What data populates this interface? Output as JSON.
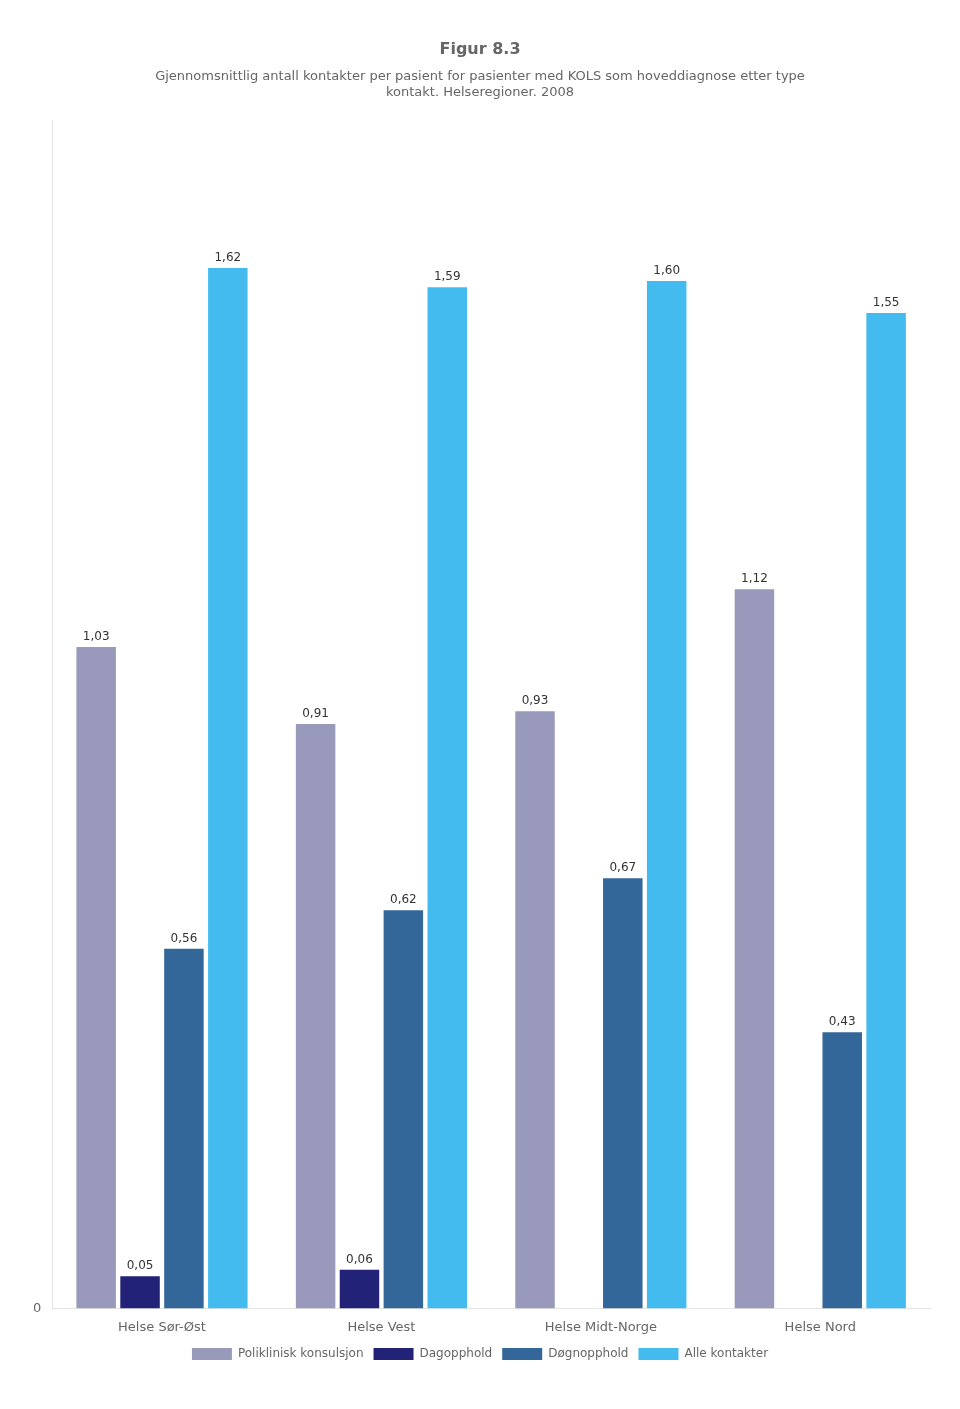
{
  "chart_data": {
    "type": "bar",
    "title": "Figur 8.3",
    "subtitle": "Gjennomsnittlig antall kontakter per pasient for pasienter med KOLS som hoveddiagnose etter type\nkontakt. Helseregioner. 2008",
    "categories": [
      "Helse Sør-Øst",
      "Helse Vest",
      "Helse Midt-Norge",
      "Helse Nord"
    ],
    "series": [
      {
        "name": "Poliklinisk konsulsjon",
        "color": "#9999BB",
        "values": [
          1.03,
          0.91,
          0.93,
          1.12
        ],
        "value_labels": [
          "1,03",
          "0,91",
          "0,93",
          "1,12"
        ]
      },
      {
        "name": "Dagopphold",
        "color": "#222277",
        "values": [
          0.05,
          0.06,
          0.0,
          0.0
        ],
        "value_labels": [
          "0,05",
          "0,06",
          null,
          null
        ]
      },
      {
        "name": "Døgnopphold",
        "color": "#336699",
        "values": [
          0.56,
          0.62,
          0.67,
          0.43
        ],
        "value_labels": [
          "0,56",
          "0,62",
          "0,67",
          "0,43"
        ]
      },
      {
        "name": "Alle kontakter",
        "color": "#44BBEE",
        "values": [
          1.62,
          1.59,
          1.6,
          1.55
        ],
        "value_labels": [
          "1,62",
          "1,59",
          "1,60",
          "1,55"
        ]
      }
    ],
    "ylim": [
      0,
      1.85
    ],
    "yticks": [
      0
    ],
    "grid": false,
    "legend": "bottom",
    "data_labels": true
  }
}
